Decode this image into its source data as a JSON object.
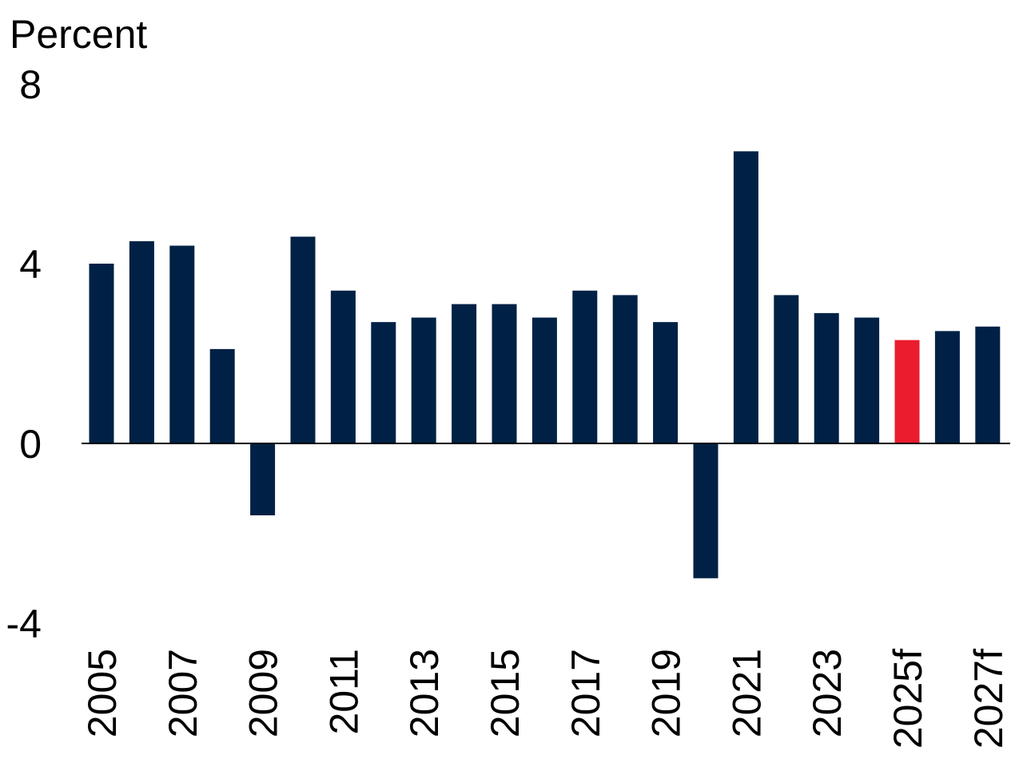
{
  "chart_data": {
    "type": "bar",
    "ylabel": "Percent",
    "ylim": [
      -4,
      8
    ],
    "yticks": [
      "8",
      "4",
      "0",
      "-4"
    ],
    "categories": [
      "2005",
      "2006",
      "2007",
      "2008",
      "2009",
      "2010",
      "2011",
      "2012",
      "2013",
      "2014",
      "2015",
      "2016",
      "2017",
      "2018",
      "2019",
      "2020",
      "2021",
      "2022",
      "2023",
      "2024",
      "2025f",
      "2026f",
      "2027f"
    ],
    "xtick_labels": [
      "2005",
      "",
      "2007",
      "",
      "2009",
      "",
      "2011",
      "",
      "2013",
      "",
      "2015",
      "",
      "2017",
      "",
      "2019",
      "",
      "2021",
      "",
      "2023",
      "",
      "2025f",
      "",
      "2027f"
    ],
    "values": [
      4.0,
      4.5,
      4.4,
      2.1,
      -1.6,
      4.6,
      3.4,
      2.7,
      2.8,
      3.1,
      3.1,
      2.8,
      3.4,
      3.3,
      2.7,
      -3.0,
      6.5,
      3.3,
      2.9,
      2.8,
      2.3,
      2.5,
      2.6
    ],
    "highlight_category": "2025f",
    "colors": {
      "bar": "#002145",
      "highlight": "#EB1C2D",
      "axis": "#000000"
    },
    "grid": false,
    "legend": "none"
  }
}
